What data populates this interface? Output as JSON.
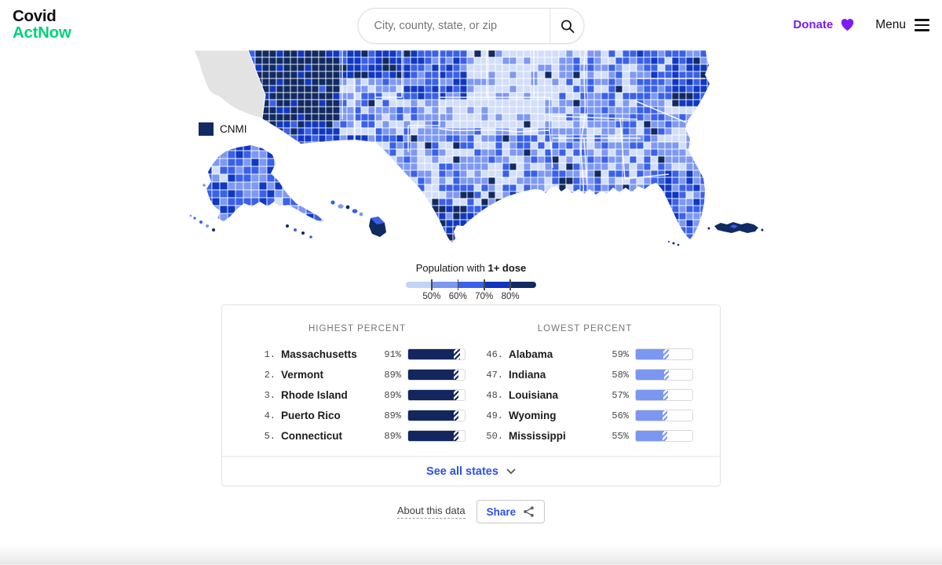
{
  "colors": {
    "brand_green": "#00d27c",
    "accent_purple": "#7c1bf2",
    "link_blue": "#2c52e8"
  },
  "header": {
    "logo_line1": "Covid",
    "logo_line2": "ActNow",
    "search_placeholder": "City, county, state, or zip",
    "donate_label": "Donate",
    "menu_label": "Menu"
  },
  "map": {
    "cnmi_label": "CNMI",
    "no_data_color": "#e3e3e3",
    "palette": [
      "#d3def9",
      "#7e99f2",
      "#3a61e9",
      "#1038c2",
      "#112a62"
    ]
  },
  "legend": {
    "title_prefix": "Population with",
    "title_bold": "1+ dose",
    "ticks": [
      "50%",
      "60%",
      "70%",
      "80%"
    ],
    "colors": [
      "#c3d3f7",
      "#7b97f1",
      "#3a61e9",
      "#0f35be",
      "#112a62"
    ]
  },
  "table": {
    "highest": {
      "header": "HIGHEST PERCENT",
      "bar_color": "#13265e",
      "rows": [
        {
          "rank": "1.",
          "name": "Massachusetts",
          "value": "91%",
          "pct": 91,
          "solid": 81
        },
        {
          "rank": "2.",
          "name": "Vermont",
          "value": "89%",
          "pct": 89,
          "solid": 80
        },
        {
          "rank": "3.",
          "name": "Rhode Island",
          "value": "89%",
          "pct": 89,
          "solid": 80
        },
        {
          "rank": "4.",
          "name": "Puerto Rico",
          "value": "89%",
          "pct": 89,
          "solid": 81
        },
        {
          "rank": "5.",
          "name": "Connecticut",
          "value": "89%",
          "pct": 89,
          "solid": 80
        }
      ]
    },
    "lowest": {
      "header": "LOWEST PERCENT",
      "bar_color": "#7b97f1",
      "rows": [
        {
          "rank": "46.",
          "name": "Alabama",
          "value": "59%",
          "pct": 59,
          "solid": 49
        },
        {
          "rank": "47.",
          "name": "Indiana",
          "value": "58%",
          "pct": 58,
          "solid": 50
        },
        {
          "rank": "48.",
          "name": "Louisiana",
          "value": "57%",
          "pct": 57,
          "solid": 48
        },
        {
          "rank": "49.",
          "name": "Wyoming",
          "value": "56%",
          "pct": 56,
          "solid": 47
        },
        {
          "rank": "50.",
          "name": "Mississippi",
          "value": "55%",
          "pct": 55,
          "solid": 47
        }
      ]
    },
    "see_all_label": "See all states"
  },
  "footer": {
    "about_label": "About this data",
    "share_label": "Share"
  },
  "icons": {
    "search": "magnifier",
    "donate": "heart",
    "menu": "hamburger",
    "see_all": "chevron-down",
    "share": "share-nodes"
  }
}
